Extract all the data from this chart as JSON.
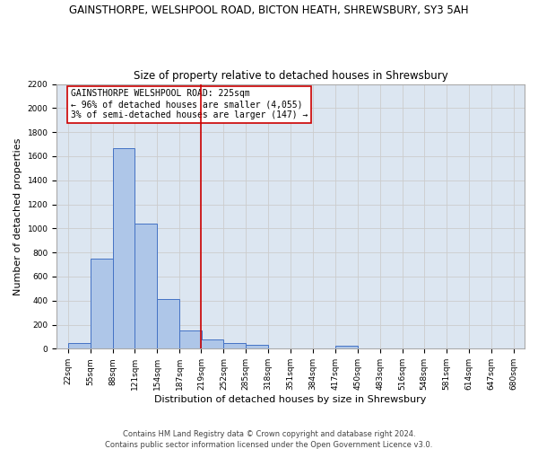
{
  "title1": "GAINSTHORPE, WELSHPOOL ROAD, BICTON HEATH, SHREWSBURY, SY3 5AH",
  "title2": "Size of property relative to detached houses in Shrewsbury",
  "xlabel": "Distribution of detached houses by size in Shrewsbury",
  "ylabel": "Number of detached properties",
  "bar_edges": [
    22,
    55,
    88,
    121,
    154,
    187,
    219,
    252,
    285,
    318,
    351,
    384,
    417,
    450,
    483,
    516,
    548,
    581,
    614,
    647,
    680
  ],
  "bar_heights": [
    50,
    750,
    1670,
    1040,
    410,
    150,
    80,
    50,
    30,
    0,
    0,
    0,
    25,
    0,
    0,
    0,
    0,
    0,
    0,
    0
  ],
  "bar_color": "#aec6e8",
  "bar_edge_color": "#4472c4",
  "vline_x": 219,
  "vline_color": "#cc0000",
  "ylim": [
    0,
    2200
  ],
  "yticks": [
    0,
    200,
    400,
    600,
    800,
    1000,
    1200,
    1400,
    1600,
    1800,
    2000,
    2200
  ],
  "grid_color": "#cccccc",
  "plot_bg_color": "#dce6f1",
  "annotation_title": "GAINSTHORPE WELSHPOOL ROAD: 225sqm",
  "annotation_line1": "← 96% of detached houses are smaller (4,055)",
  "annotation_line2": "3% of semi-detached houses are larger (147) →",
  "footer1": "Contains HM Land Registry data © Crown copyright and database right 2024.",
  "footer2": "Contains public sector information licensed under the Open Government Licence v3.0.",
  "title1_fontsize": 8.5,
  "title2_fontsize": 8.5,
  "xlabel_fontsize": 8,
  "ylabel_fontsize": 8,
  "tick_fontsize": 6.5,
  "annotation_fontsize": 7.0,
  "footer_fontsize": 6.0
}
